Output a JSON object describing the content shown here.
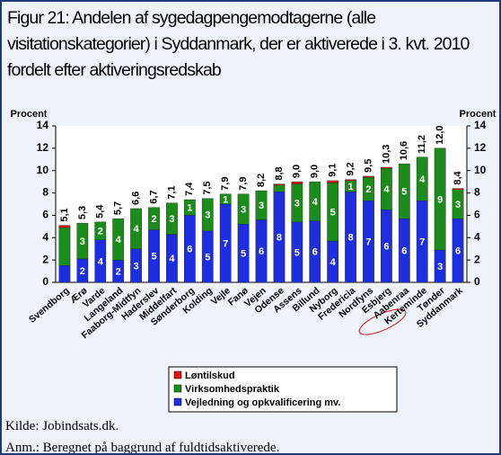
{
  "chart_data": {
    "type": "stacked_bar",
    "title": "Figur 21: Andelen af sygedagpengemodtagerne (alle visitationskategorier) i Syddanmark, der er aktiverede i 3. kvt. 2010 fordelt efter aktiveringsredskab",
    "ylabel": "Procent",
    "y2label": "Procent",
    "categories": [
      "Svendborg",
      "Ærø",
      "Varde",
      "Langeland",
      "Faaborg-Midtfyn",
      "Haderslev",
      "Middelfart",
      "Sønderborg",
      "Kolding",
      "Vejle",
      "Fanø",
      "Vejen",
      "Odense",
      "Assens",
      "Billund",
      "Nyborg",
      "Fredericia",
      "Nordfyns",
      "Esbjerg",
      "Aabenraa",
      "Kerteminde",
      "Tønder",
      "Syddanmark"
    ],
    "series": [
      {
        "name": "Vejledning og opkvalificering mv.",
        "color": "#1c2ee0",
        "values": [
          1.5,
          2.1,
          3.8,
          2.0,
          3.0,
          4.7,
          4.3,
          6.0,
          4.6,
          7.0,
          5.2,
          5.6,
          8.1,
          5.4,
          5.5,
          3.7,
          8.1,
          7.3,
          6.5,
          5.7,
          7.3,
          2.9,
          5.7
        ],
        "value_labels": [
          null,
          "2",
          "4",
          "2",
          "3",
          "5",
          "4",
          "6",
          "5",
          "7",
          "5",
          "6",
          "8",
          "5",
          "6",
          "4",
          "8",
          "7",
          "6",
          "6",
          "7",
          "3",
          "6"
        ]
      },
      {
        "name": "Virksomhedspraktik",
        "color": "#1b8c1b",
        "values": [
          3.4,
          3.2,
          1.6,
          3.7,
          3.6,
          2.0,
          2.8,
          1.4,
          2.9,
          0.9,
          2.7,
          2.6,
          0.6,
          3.4,
          3.5,
          5.2,
          1.0,
          2.1,
          3.7,
          4.9,
          3.9,
          9.1,
          2.6
        ],
        "value_labels": [
          null,
          "3",
          "2",
          "4",
          "4",
          "2",
          "3",
          "1",
          "3",
          "1",
          "3",
          "3",
          null,
          "3",
          "4",
          "5",
          "1",
          "2",
          "4",
          "5",
          "4",
          "9",
          "3"
        ]
      },
      {
        "name": "Løntilskud",
        "color": "#e01414",
        "values": [
          0.2,
          0,
          0,
          0,
          0,
          0,
          0,
          0,
          0,
          0,
          0,
          0,
          0.1,
          0.2,
          0,
          0.2,
          0.1,
          0.1,
          0.1,
          0,
          0,
          0,
          0.1
        ]
      }
    ],
    "total_values": [
      5.1,
      5.3,
      5.4,
      5.7,
      6.6,
      6.7,
      7.1,
      7.4,
      7.5,
      7.9,
      7.9,
      8.2,
      8.8,
      9.0,
      9.0,
      9.1,
      9.2,
      9.5,
      10.3,
      10.6,
      11.2,
      12.0,
      8.4
    ],
    "total_labels": [
      "5,1",
      "5,3",
      "5,4",
      "5,7",
      "6,6",
      "6,7",
      "7,1",
      "7,4",
      "7,5",
      "7,9",
      "7,9",
      "8,2",
      "8,8",
      "9,0",
      "9,0",
      "9,1",
      "9,2",
      "9,5",
      "10,3",
      "10,6",
      "11,2",
      "12,0",
      "8,4"
    ],
    "ylim": [
      0,
      14
    ],
    "yticks": [
      0,
      2,
      4,
      6,
      8,
      10,
      12,
      14
    ],
    "y2lim": [
      0,
      14
    ],
    "y2ticks": [
      0,
      2,
      4,
      6,
      8,
      10,
      12,
      14
    ],
    "grid": false,
    "legend": "bottom",
    "source": "Kilde: Jobindsats.dk.",
    "note": "Anm.: Beregnet på baggrund af fuldtidsaktiverede."
  }
}
